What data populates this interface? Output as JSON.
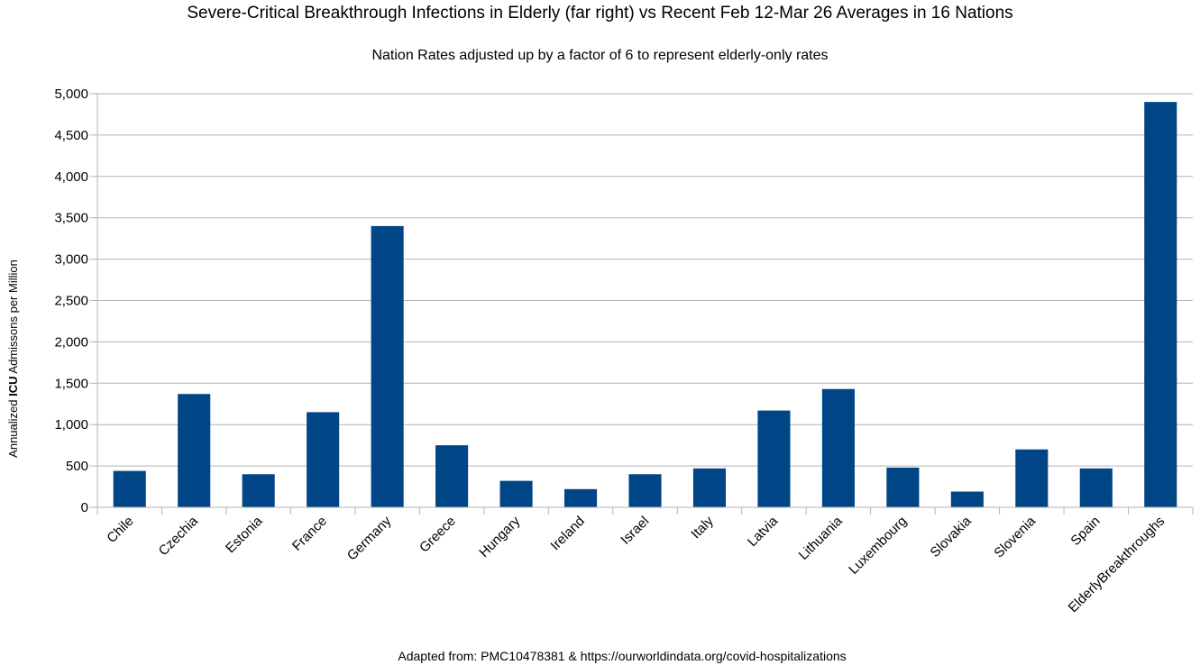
{
  "chart_data": {
    "type": "bar",
    "title": "Severe-Critical Breakthrough Infections in Elderly (far right) vs Recent Feb 12-Mar 26 Averages in 16 Nations",
    "subtitle": "Nation Rates adjusted up by a factor of 6 to represent elderly-only rates",
    "ylabel_parts": [
      "Annualized ",
      "ICU",
      " Admissons per Million"
    ],
    "xlabel": "",
    "source": "Adapted from: PMC10478381 & https://ourworldindata.org/covid-hospitalizations",
    "categories": [
      "Chile",
      "Czechia",
      "Estonia",
      "France",
      "Germany",
      "Greece",
      "Hungary",
      "Ireland",
      "Israel",
      "Italy",
      "Latvia",
      "Lithuania",
      "Luxembourg",
      "Slovakia",
      "Slovenia",
      "Spain",
      "ElderlyBreakthroughs"
    ],
    "values": [
      440,
      1370,
      400,
      1150,
      3400,
      750,
      320,
      220,
      400,
      470,
      1170,
      1430,
      480,
      190,
      700,
      470,
      4900
    ],
    "ylim": [
      0,
      5000
    ],
    "yticks": [
      0,
      500,
      1000,
      1500,
      2000,
      2500,
      3000,
      3500,
      4000,
      4500,
      5000
    ],
    "ytick_labels": [
      "0",
      "500",
      "1,000",
      "1,500",
      "2,000",
      "2,500",
      "3,000",
      "3,500",
      "4,000",
      "4,500",
      "5,000"
    ],
    "grid": true,
    "legend": "none",
    "colors": {
      "bar": "#004586",
      "grid": "#b3b3b3",
      "axis": "#b3b3b3"
    }
  }
}
